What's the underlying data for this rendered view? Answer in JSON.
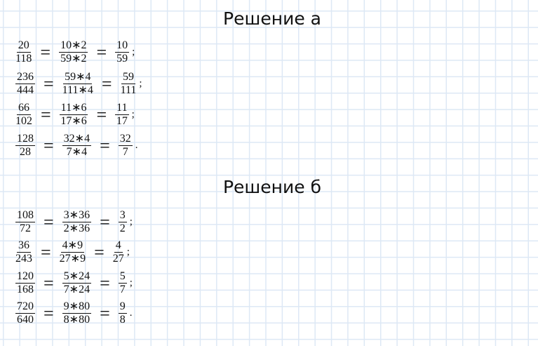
{
  "sections": [
    {
      "title": "Решение а",
      "rows": [
        {
          "a": [
            "20",
            "118"
          ],
          "b": [
            "10∗2",
            "59∗2"
          ],
          "c": [
            "10",
            "59"
          ],
          "p": ";"
        },
        {
          "a": [
            "236",
            "444"
          ],
          "b": [
            "59∗4",
            "111∗4"
          ],
          "c": [
            "59",
            "111"
          ],
          "p": ";"
        },
        {
          "a": [
            "66",
            "102"
          ],
          "b": [
            "11∗6",
            "17∗6"
          ],
          "c": [
            "11",
            "17"
          ],
          "p": ";"
        },
        {
          "a": [
            "128",
            "28"
          ],
          "b": [
            "32∗4",
            "7∗4"
          ],
          "c": [
            "32",
            "7"
          ],
          "p": "."
        }
      ]
    },
    {
      "title": "Решение б",
      "rows": [
        {
          "a": [
            "108",
            "72"
          ],
          "b": [
            "3∗36",
            "2∗36"
          ],
          "c": [
            "3",
            "2"
          ],
          "p": ";"
        },
        {
          "a": [
            "36",
            "243"
          ],
          "b": [
            "4∗9",
            "27∗9"
          ],
          "c": [
            "4",
            "27"
          ],
          "p": ";"
        },
        {
          "a": [
            "120",
            "168"
          ],
          "b": [
            "5∗24",
            "7∗24"
          ],
          "c": [
            "5",
            "7"
          ],
          "p": ";"
        },
        {
          "a": [
            "720",
            "640"
          ],
          "b": [
            "9∗80",
            "8∗80"
          ],
          "c": [
            "9",
            "8"
          ],
          "p": "."
        }
      ]
    }
  ],
  "equals": "="
}
